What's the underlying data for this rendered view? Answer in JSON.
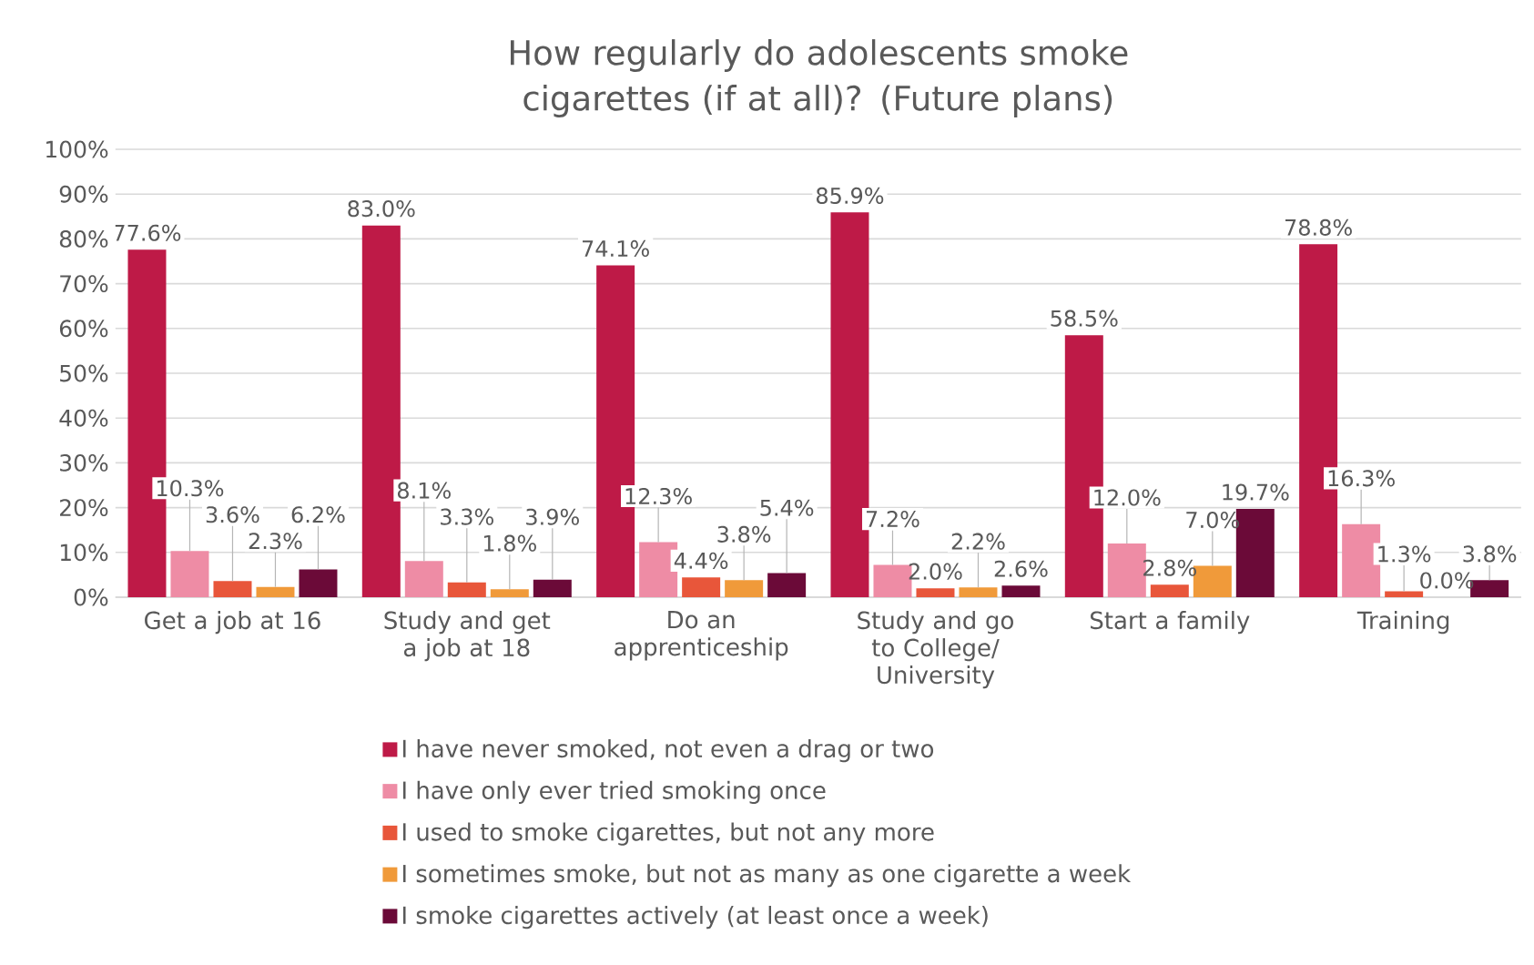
{
  "chart_data": {
    "type": "bar",
    "title": "How regularly do adolescents smoke cigarettes (if at all)? (Future plans)",
    "categories": [
      "Get a job at 16",
      "Study and get a job at 18",
      "Do an apprenticeship",
      "Study and go to College/ University",
      "Start a family",
      "Training"
    ],
    "series": [
      {
        "name": "I have never smoked, not even a drag or two",
        "color": "#be1a47",
        "values": [
          77.6,
          83.0,
          74.1,
          85.9,
          58.5,
          78.8
        ],
        "value_labels": [
          "77.6%",
          "83.0%",
          "74.1%",
          "85.9%",
          "58.5%",
          "78.8%"
        ]
      },
      {
        "name": "I have only ever tried smoking once",
        "color": "#ee8ca5",
        "values": [
          10.3,
          8.1,
          12.3,
          7.2,
          12.0,
          16.3
        ],
        "value_labels": [
          "10.3%",
          "8.1%",
          "12.3%",
          "7.2%",
          "12.0%",
          "16.3%"
        ]
      },
      {
        "name": "I used to smoke cigarettes, but not any more",
        "color": "#e8563a",
        "values": [
          3.6,
          3.3,
          4.4,
          2.0,
          2.8,
          1.3
        ],
        "value_labels": [
          "3.6%",
          "3.3%",
          "4.4%",
          "2.0%",
          "2.8%",
          "1.3%"
        ]
      },
      {
        "name": "I sometimes smoke, but not as many as one cigarette a week",
        "color": "#f09a3a",
        "values": [
          2.3,
          1.8,
          3.8,
          2.2,
          7.0,
          0.0
        ],
        "value_labels": [
          "2.3%",
          "1.8%",
          "3.8%",
          "2.2%",
          "7.0%",
          "0.0%"
        ]
      },
      {
        "name": "I smoke cigarettes actively (at least once a week)",
        "color": "#6b0a38",
        "values": [
          6.2,
          3.9,
          5.4,
          2.6,
          19.7,
          3.8
        ],
        "value_labels": [
          "6.2%",
          "3.9%",
          "5.4%",
          "2.6%",
          "19.7%",
          "3.8%"
        ]
      }
    ],
    "ylim": [
      0,
      100
    ],
    "yticks": [
      {
        "value": 0,
        "label": "0%"
      },
      {
        "value": 10,
        "label": "10%"
      },
      {
        "value": 20,
        "label": "20%"
      },
      {
        "value": 30,
        "label": "30%"
      },
      {
        "value": 40,
        "label": "40%"
      },
      {
        "value": 50,
        "label": "50%"
      },
      {
        "value": 60,
        "label": "60%"
      },
      {
        "value": 70,
        "label": "70%"
      },
      {
        "value": 80,
        "label": "80%"
      },
      {
        "value": 90,
        "label": "90%"
      },
      {
        "value": 100,
        "label": "100%"
      }
    ],
    "grid": "y",
    "legend": "bottom"
  }
}
